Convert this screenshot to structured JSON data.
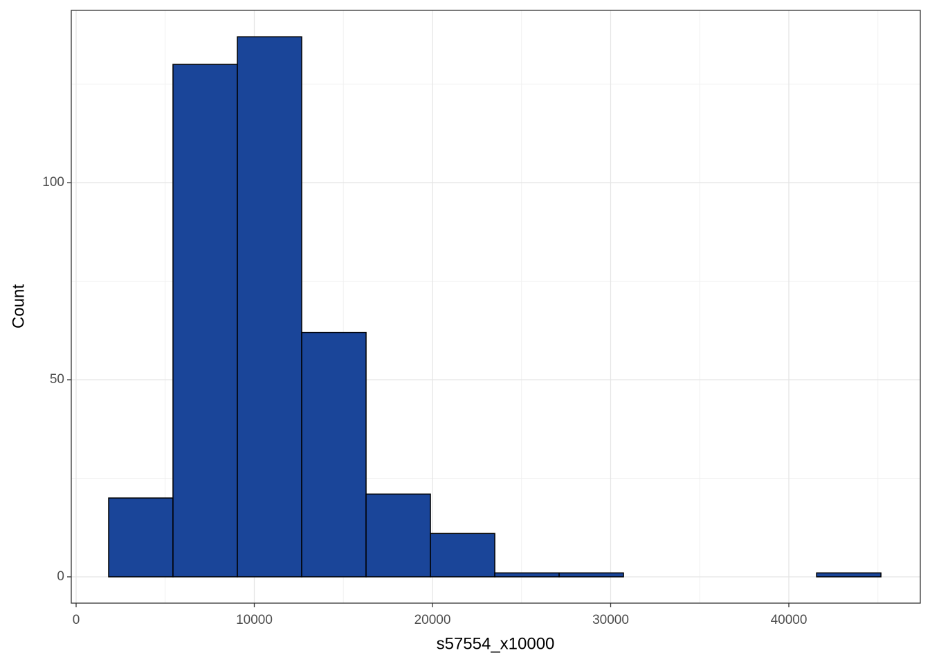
{
  "chart_data": {
    "type": "histogram",
    "x_label": "s57554_x10000",
    "y_label": "Count",
    "bins": [
      1825,
      5437,
      9049,
      12661,
      16273,
      19885,
      23497,
      27109,
      30721,
      34333,
      37945,
      41557,
      45169
    ],
    "values": [
      20,
      130,
      137,
      62,
      21,
      11,
      1,
      1,
      0,
      0,
      0,
      1
    ],
    "color": "#1a4599",
    "edge_color": "#000000",
    "xlim": [
      -272,
      47379
    ],
    "ylim": [
      -6.67,
      143.7
    ],
    "xticks": [
      0,
      10000,
      20000,
      30000,
      40000
    ],
    "yticks": [
      0,
      50,
      100
    ],
    "grid": true
  }
}
